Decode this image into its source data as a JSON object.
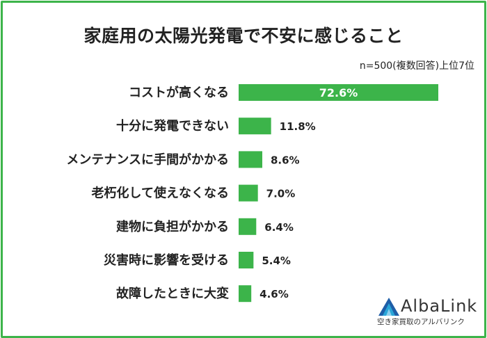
{
  "title": "家庭用の太陽光発電で不安に感じること",
  "note": "n=500(複数回答)上位7位",
  "logo": {
    "name": "AlbaLink",
    "tagline": "空き家買取のアルバリンク",
    "colors": [
      "#1e5ea8",
      "#2aa6d8",
      "#8fd0ee"
    ]
  },
  "colors": {
    "bar": "#3cb44a",
    "frame": "#3cb44a"
  },
  "chart_data": {
    "type": "bar",
    "orientation": "horizontal",
    "categories": [
      "コストが高くなる",
      "十分に発電できない",
      "メンテナンスに手間がかかる",
      "老朽化して使えなくなる",
      "建物に負担がかかる",
      "災害時に影響を受ける",
      "故障したときに大変"
    ],
    "values": [
      72.6,
      11.8,
      8.6,
      7.0,
      6.4,
      5.4,
      4.6
    ],
    "value_labels": [
      "72.6%",
      "11.8%",
      "8.6%",
      "7.0%",
      "6.4%",
      "5.4%",
      "4.6%"
    ],
    "unit": "%",
    "xlim": [
      0,
      72.6
    ],
    "grid": false,
    "legend": "none"
  }
}
